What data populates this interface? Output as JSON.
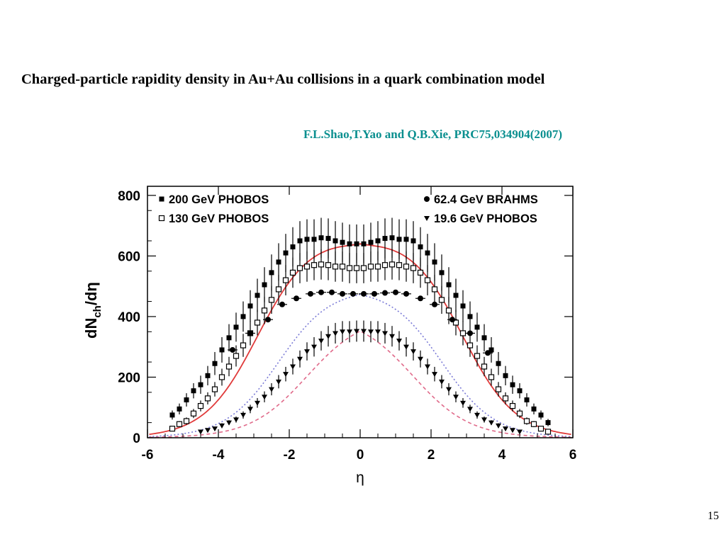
{
  "slide": {
    "title": "Charged-particle rapidity density in Au+Au collisions in a quark combination model",
    "reference": "F.L.Shao,T.Yao and Q.B.Xie, PRC75,034904(2007)",
    "page_number": "15"
  },
  "chart_data": {
    "type": "scatter",
    "xlabel": "η",
    "ylabel": "dN_ch/dη",
    "ylabel_main": "dN",
    "ylabel_sub": "ch",
    "ylabel_tail": "/dη",
    "xlim": [
      -6,
      6
    ],
    "ylim": [
      0,
      830
    ],
    "xticks": [
      -6,
      -4,
      -2,
      0,
      2,
      4,
      6
    ],
    "yticks": [
      0,
      200,
      400,
      600,
      800
    ],
    "grid": false,
    "legend_placement": "top",
    "colors": {
      "data": "#000000",
      "curve_red": "#e03a3a",
      "curve_blue": "#7a7ad6",
      "curve_pink": "#e06a8a"
    },
    "series": [
      {
        "name": "200 GeV PHOBOS",
        "marker": "filled-square",
        "x": [
          -5.3,
          -5.1,
          -4.9,
          -4.7,
          -4.5,
          -4.3,
          -4.1,
          -3.9,
          -3.7,
          -3.5,
          -3.3,
          -3.1,
          -2.9,
          -2.7,
          -2.5,
          -2.3,
          -2.1,
          -1.9,
          -1.7,
          -1.5,
          -1.3,
          -1.1,
          -0.9,
          -0.7,
          -0.5,
          -0.3,
          -0.1,
          0.1,
          0.3,
          0.5,
          0.7,
          0.9,
          1.1,
          1.3,
          1.5,
          1.7,
          1.9,
          2.1,
          2.3,
          2.5,
          2.7,
          2.9,
          3.1,
          3.3,
          3.5,
          3.7,
          3.9,
          4.1,
          4.3,
          4.5,
          4.7,
          4.9,
          5.1,
          5.3
        ],
        "y": [
          75,
          95,
          125,
          155,
          175,
          205,
          245,
          290,
          330,
          365,
          400,
          435,
          470,
          505,
          545,
          580,
          610,
          630,
          650,
          655,
          655,
          660,
          658,
          650,
          645,
          640,
          640,
          640,
          645,
          650,
          658,
          660,
          655,
          655,
          650,
          630,
          610,
          580,
          545,
          505,
          470,
          435,
          400,
          365,
          330,
          290,
          245,
          205,
          175,
          155,
          125,
          95,
          75,
          50
        ],
        "err": [
          15,
          18,
          22,
          25,
          30,
          32,
          38,
          42,
          45,
          48,
          50,
          52,
          55,
          58,
          60,
          62,
          63,
          65,
          65,
          66,
          66,
          66,
          66,
          65,
          65,
          64,
          64,
          64,
          65,
          65,
          66,
          66,
          66,
          66,
          65,
          65,
          63,
          62,
          60,
          58,
          55,
          52,
          50,
          48,
          45,
          42,
          38,
          32,
          30,
          25,
          22,
          18,
          15,
          12
        ]
      },
      {
        "name": "130 GeV PHOBOS",
        "marker": "open-square",
        "x": [
          -5.3,
          -5.1,
          -4.9,
          -4.7,
          -4.5,
          -4.3,
          -4.1,
          -3.9,
          -3.7,
          -3.5,
          -3.3,
          -3.1,
          -2.9,
          -2.7,
          -2.5,
          -2.3,
          -2.1,
          -1.9,
          -1.7,
          -1.5,
          -1.3,
          -1.1,
          -0.9,
          -0.7,
          -0.5,
          -0.3,
          -0.1,
          0.1,
          0.3,
          0.5,
          0.7,
          0.9,
          1.1,
          1.3,
          1.5,
          1.7,
          1.9,
          2.1,
          2.3,
          2.5,
          2.7,
          2.9,
          3.1,
          3.3,
          3.5,
          3.7,
          3.9,
          4.1,
          4.3,
          4.5,
          4.7,
          4.9,
          5.1,
          5.3
        ],
        "y": [
          30,
          45,
          55,
          80,
          105,
          130,
          160,
          200,
          235,
          270,
          305,
          345,
          380,
          420,
          455,
          490,
          520,
          545,
          560,
          565,
          570,
          572,
          570,
          565,
          565,
          560,
          560,
          560,
          565,
          565,
          570,
          572,
          570,
          565,
          560,
          545,
          520,
          490,
          455,
          420,
          380,
          345,
          305,
          270,
          235,
          200,
          160,
          130,
          105,
          80,
          55,
          45,
          30,
          20
        ],
        "err": [
          8,
          10,
          12,
          15,
          18,
          20,
          24,
          28,
          32,
          35,
          38,
          40,
          42,
          45,
          46,
          48,
          50,
          50,
          50,
          50,
          50,
          50,
          50,
          50,
          50,
          50,
          50,
          50,
          50,
          50,
          50,
          50,
          50,
          50,
          50,
          50,
          50,
          48,
          46,
          45,
          42,
          40,
          38,
          35,
          32,
          28,
          24,
          20,
          18,
          15,
          12,
          10,
          8,
          6
        ]
      },
      {
        "name": "62.4 GeV BRAHMS",
        "marker": "filled-circle",
        "x": [
          -3.6,
          -3.1,
          -2.6,
          -2.2,
          -1.8,
          -1.4,
          -1.1,
          -0.8,
          -0.5,
          -0.2,
          0.1,
          0.4,
          0.7,
          1.0,
          1.3,
          1.7,
          2.1,
          2.6,
          3.1,
          3.6
        ],
        "y": [
          290,
          345,
          390,
          440,
          460,
          475,
          480,
          480,
          475,
          475,
          475,
          475,
          478,
          480,
          475,
          460,
          440,
          390,
          345,
          280
        ],
        "err": [
          12,
          12,
          12,
          12,
          12,
          12,
          12,
          12,
          12,
          12,
          12,
          12,
          12,
          12,
          12,
          12,
          12,
          12,
          12,
          12
        ]
      },
      {
        "name": "19.6 GeV PHOBOS",
        "marker": "filled-triangle-down",
        "x": [
          -4.5,
          -4.3,
          -4.1,
          -3.9,
          -3.7,
          -3.5,
          -3.3,
          -3.1,
          -2.9,
          -2.7,
          -2.5,
          -2.3,
          -2.1,
          -1.9,
          -1.7,
          -1.5,
          -1.3,
          -1.1,
          -0.9,
          -0.7,
          -0.5,
          -0.3,
          -0.1,
          0.1,
          0.3,
          0.5,
          0.7,
          0.9,
          1.1,
          1.3,
          1.5,
          1.7,
          1.9,
          2.1,
          2.3,
          2.5,
          2.7,
          2.9,
          3.1,
          3.3,
          3.5,
          3.7,
          3.9,
          4.1,
          4.3,
          4.5
        ],
        "y": [
          20,
          25,
          30,
          40,
          50,
          60,
          75,
          95,
          115,
          135,
          160,
          185,
          210,
          235,
          260,
          285,
          300,
          320,
          335,
          345,
          350,
          350,
          352,
          352,
          350,
          350,
          345,
          335,
          320,
          300,
          285,
          260,
          235,
          210,
          185,
          160,
          135,
          115,
          95,
          75,
          60,
          50,
          40,
          30,
          25,
          20
        ],
        "err": [
          5,
          6,
          6,
          8,
          8,
          10,
          12,
          14,
          16,
          18,
          20,
          22,
          24,
          26,
          28,
          30,
          32,
          32,
          34,
          34,
          35,
          35,
          35,
          35,
          35,
          35,
          34,
          34,
          32,
          32,
          30,
          28,
          26,
          24,
          22,
          20,
          18,
          16,
          14,
          12,
          10,
          8,
          8,
          6,
          6,
          5
        ]
      }
    ]
  }
}
